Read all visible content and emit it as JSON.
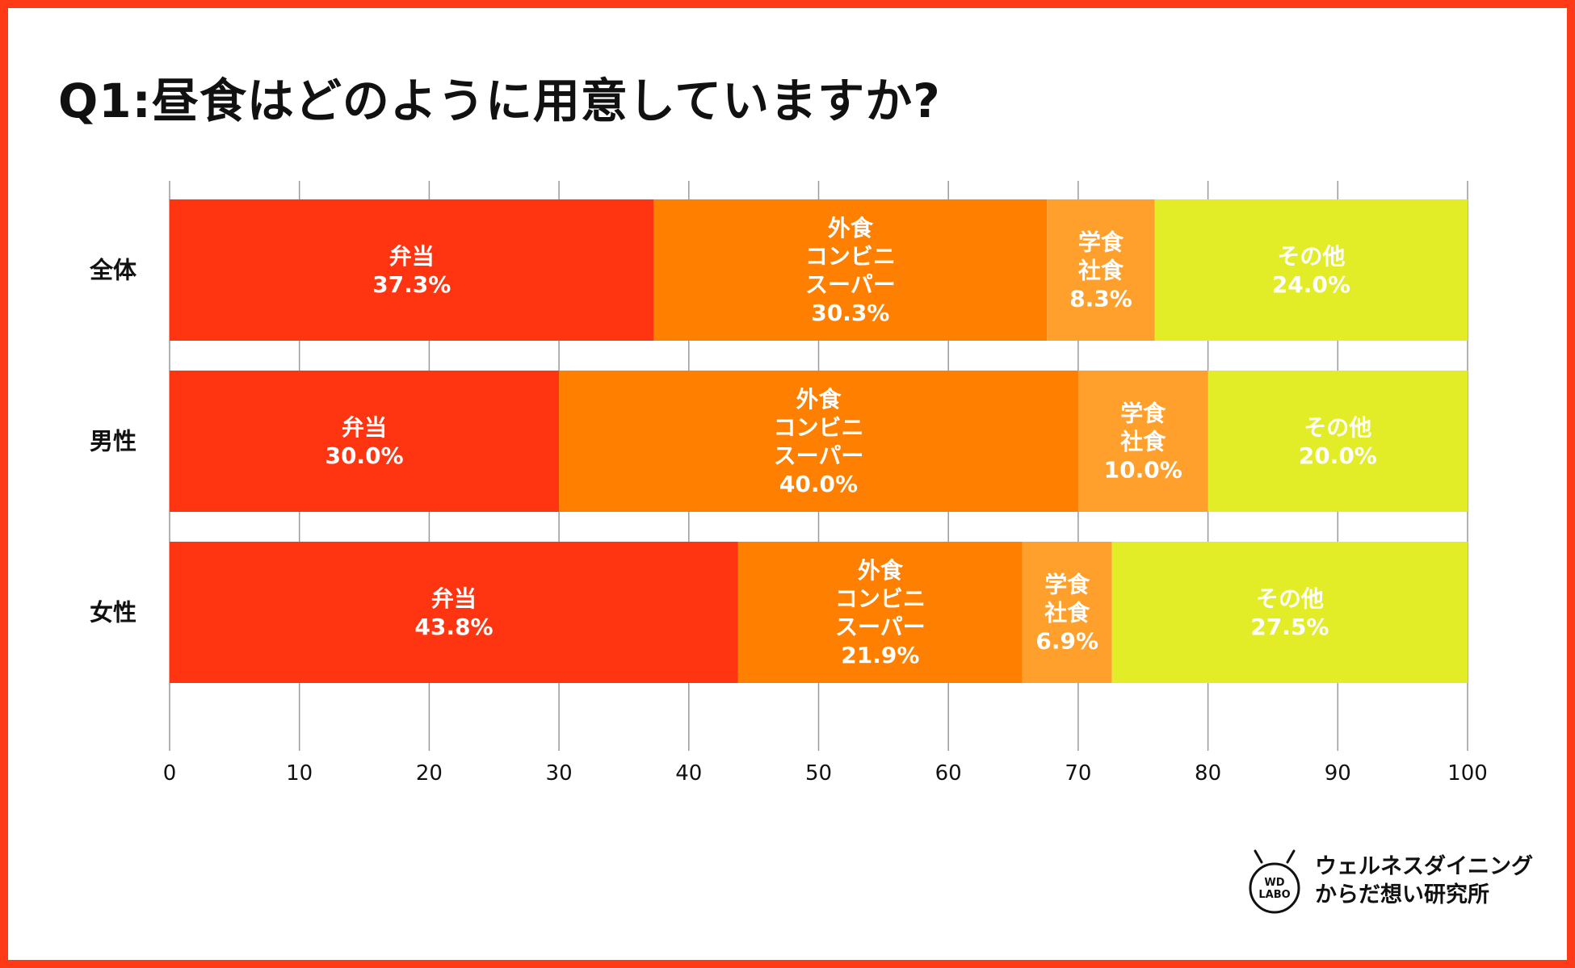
{
  "chart_data": {
    "type": "bar",
    "orientation": "horizontal",
    "stacked": true,
    "title": "Q1:昼食はどのように用意していますか?",
    "categories": [
      "全体",
      "男性",
      "女性"
    ],
    "series": [
      {
        "name": "弁当",
        "label_lines": [
          "弁当"
        ],
        "color": "#ff3512",
        "values": [
          37.3,
          30.0,
          43.8
        ],
        "labels": [
          "37.3%",
          "30.0%",
          "43.8%"
        ]
      },
      {
        "name": "外食コンビニスーパー",
        "label_lines": [
          "外食",
          "コンビニ",
          "スーパー"
        ],
        "color": "#ff7f00",
        "values": [
          30.3,
          40.0,
          21.9
        ],
        "labels": [
          "30.3%",
          "40.0%",
          "21.9%"
        ]
      },
      {
        "name": "学食社食",
        "label_lines": [
          "学食",
          "社食"
        ],
        "color": "#ffa02d",
        "values": [
          8.3,
          10.0,
          6.9
        ],
        "labels": [
          "8.3%",
          "10.0%",
          "6.9%"
        ]
      },
      {
        "name": "その他",
        "label_lines": [
          "その他"
        ],
        "color": "#e2ec27",
        "values": [
          24.0,
          20.0,
          27.5
        ],
        "labels": [
          "24.0%",
          "20.0%",
          "27.5%"
        ]
      }
    ],
    "xlim": [
      0,
      100
    ],
    "xticks": [
      0,
      10,
      20,
      30,
      40,
      50,
      60,
      70,
      80,
      90,
      100
    ],
    "xlabel": "",
    "ylabel": "",
    "grid": true
  },
  "logo": {
    "mark_line1": "WD",
    "mark_line2": "LABO",
    "text_line1": "ウェルネスダイニング",
    "text_line2": "からだ想い研究所"
  },
  "colors": {
    "frame": "#ff3a17",
    "gridline": "#9a9a9a"
  }
}
